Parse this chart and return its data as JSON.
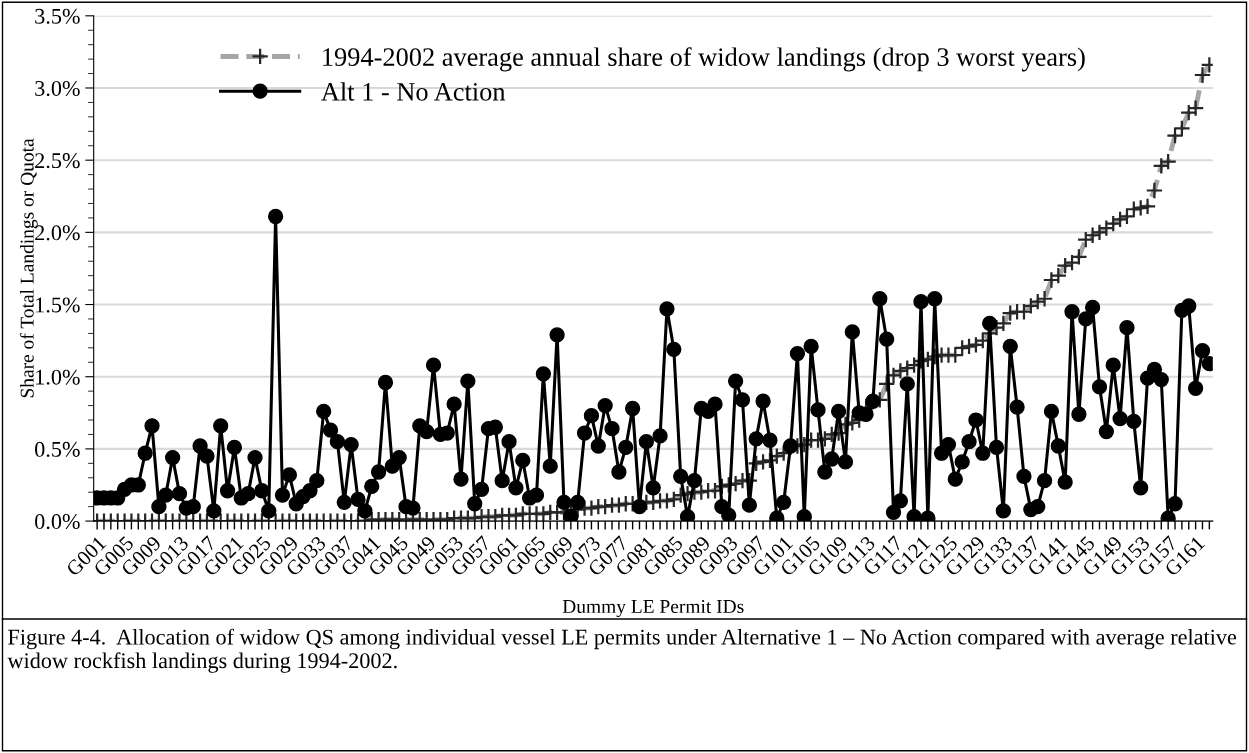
{
  "chart_data": {
    "type": "line",
    "xlabel": "Dummy LE Permit IDs",
    "ylabel": "Share of Total Landings or Quota",
    "annotations": [
      "Figure 4-4.  Allocation of widow QS among individual vessel LE permits under Alternative 1 – No Action compared with average relative widow rockfish landings during 1994-2002."
    ],
    "categories": [
      "G001",
      null,
      null,
      null,
      "G005",
      null,
      null,
      null,
      "G009",
      null,
      null,
      null,
      "G013",
      null,
      null,
      null,
      "G017",
      null,
      null,
      null,
      "G021",
      null,
      null,
      null,
      "G025",
      null,
      null,
      null,
      "G029",
      null,
      null,
      null,
      "G033",
      null,
      null,
      null,
      "G037",
      null,
      null,
      null,
      "G041",
      null,
      null,
      null,
      "G045",
      null,
      null,
      null,
      "G049",
      null,
      null,
      null,
      "G053",
      null,
      null,
      null,
      "G057",
      null,
      null,
      null,
      "G061",
      null,
      null,
      null,
      "G065",
      null,
      null,
      null,
      "G069",
      null,
      null,
      null,
      "G073",
      null,
      null,
      null,
      "G077",
      null,
      null,
      null,
      "G081",
      null,
      null,
      null,
      "G085",
      null,
      null,
      null,
      "G089",
      null,
      null,
      null,
      "G093",
      null,
      null,
      null,
      "G097",
      null,
      null,
      null,
      "G101",
      null,
      null,
      null,
      "G105",
      null,
      null,
      null,
      "G109",
      null,
      null,
      null,
      "G113",
      null,
      null,
      null,
      "G117",
      null,
      null,
      null,
      "G121",
      null,
      null,
      null,
      "G125",
      null,
      null,
      null,
      "G129",
      null,
      null,
      null,
      "G133",
      null,
      null,
      null,
      "G137",
      null,
      null,
      null,
      "G141",
      null,
      null,
      null,
      "G145",
      null,
      null,
      null,
      "G149",
      null,
      null,
      null,
      "G153",
      null,
      null,
      null,
      "G157",
      null,
      null,
      null,
      "G161",
      null,
      null
    ],
    "series": [
      {
        "name": "1994-2002 average annual share of widow landings (drop 3 worst years)",
        "color": "#a6a6a6",
        "line_style": "dashed",
        "marker": "cross",
        "values": [
          0,
          0,
          0,
          0,
          0,
          0,
          0,
          0,
          0,
          0,
          0,
          0,
          0,
          0,
          0,
          0,
          0,
          0,
          0,
          0,
          0,
          0,
          0,
          0,
          0,
          0,
          0,
          0,
          0,
          0,
          0,
          0,
          0,
          0,
          0,
          0,
          0,
          0,
          0,
          0,
          0.01,
          0.01,
          0.01,
          0.01,
          0.01,
          0.01,
          0.01,
          0.01,
          0.01,
          0.01,
          0.01,
          0.01,
          0.02,
          0.02,
          0.02,
          0.02,
          0.03,
          0.03,
          0.03,
          0.04,
          0.04,
          0.04,
          0.05,
          0.05,
          0.05,
          0.05,
          0.06,
          0.06,
          0.06,
          0.07,
          0.08,
          0.09,
          0.09,
          0.1,
          0.1,
          0.11,
          0.11,
          0.12,
          0.12,
          0.13,
          0.13,
          0.13,
          0.14,
          0.14,
          0.15,
          0.18,
          0.19,
          0.2,
          0.2,
          0.21,
          0.21,
          0.24,
          0.25,
          0.26,
          0.28,
          0.28,
          0.4,
          0.41,
          0.42,
          0.45,
          0.47,
          0.51,
          0.52,
          0.53,
          0.56,
          0.56,
          0.57,
          0.6,
          0.61,
          0.67,
          0.68,
          0.7,
          0.78,
          0.84,
          0.84,
          0.95,
          1.01,
          1.04,
          1.06,
          1.08,
          1.11,
          1.12,
          1.14,
          1.15,
          1.15,
          1.15,
          1.2,
          1.21,
          1.22,
          1.25,
          1.3,
          1.34,
          1.37,
          1.44,
          1.45,
          1.45,
          1.49,
          1.52,
          1.54,
          1.67,
          1.7,
          1.77,
          1.79,
          1.83,
          1.95,
          1.98,
          2.0,
          2.03,
          2.06,
          2.09,
          2.11,
          2.16,
          2.17,
          2.18,
          2.29,
          2.46,
          2.49,
          2.67,
          2.72,
          2.83,
          2.86,
          3.09,
          3.16
        ]
      },
      {
        "name": "Alt 1 - No Action",
        "color": "#000000",
        "line_style": "solid",
        "marker": "circle",
        "values": [
          0.16,
          0.16,
          0.16,
          0.16,
          0.22,
          0.25,
          0.25,
          0.47,
          0.66,
          0.1,
          0.18,
          0.44,
          0.19,
          0.09,
          0.1,
          0.52,
          0.45,
          0.07,
          0.66,
          0.21,
          0.51,
          0.16,
          0.19,
          0.44,
          0.21,
          0.07,
          2.11,
          0.18,
          0.32,
          0.12,
          0.17,
          0.21,
          0.28,
          0.76,
          0.63,
          0.55,
          0.13,
          0.53,
          0.15,
          0.07,
          0.24,
          0.34,
          0.96,
          0.38,
          0.44,
          0.1,
          0.09,
          0.66,
          0.62,
          1.08,
          0.6,
          0.61,
          0.81,
          0.29,
          0.97,
          0.12,
          0.22,
          0.64,
          0.65,
          0.28,
          0.55,
          0.23,
          0.42,
          0.16,
          0.18,
          1.02,
          0.38,
          1.29,
          0.13,
          0.03,
          0.13,
          0.61,
          0.73,
          0.52,
          0.8,
          0.64,
          0.34,
          0.51,
          0.78,
          0.1,
          0.55,
          0.23,
          0.59,
          1.47,
          1.19,
          0.31,
          0.03,
          0.28,
          0.78,
          0.76,
          0.81,
          0.1,
          0.04,
          0.97,
          0.84,
          0.11,
          0.57,
          0.83,
          0.56,
          0.02,
          0.13,
          0.52,
          1.16,
          0.03,
          1.21,
          0.77,
          0.34,
          0.43,
          0.76,
          0.41,
          1.31,
          0.75,
          0.74,
          0.83,
          1.54,
          1.26,
          0.06,
          0.14,
          0.95,
          0.03,
          1.52,
          0.02,
          1.54,
          0.47,
          0.53,
          0.29,
          0.41,
          0.55,
          0.7,
          0.47,
          1.37,
          0.51,
          0.07,
          1.21,
          0.79,
          0.31,
          0.08,
          0.1,
          0.28,
          0.76,
          0.52,
          0.27,
          1.45,
          0.74,
          1.4,
          1.48,
          0.93,
          0.62,
          1.08,
          0.71,
          1.34,
          0.69,
          0.23,
          0.99,
          1.05,
          0.98,
          0.02,
          0.12,
          1.46,
          1.49,
          0.92,
          1.18,
          1.09
        ]
      }
    ],
    "ylim": [
      0,
      3.5
    ],
    "yticks": [
      {
        "value": 0,
        "label": "0.0%"
      },
      {
        "value": 0.5,
        "label": "0.5%"
      },
      {
        "value": 1.0,
        "label": "1.0%"
      },
      {
        "value": 1.5,
        "label": "1.5%"
      },
      {
        "value": 2.0,
        "label": "2.0%"
      },
      {
        "value": 2.5,
        "label": "2.5%"
      },
      {
        "value": 3.0,
        "label": "3.0%"
      },
      {
        "value": 3.5,
        "label": "3.5%"
      }
    ],
    "grid": "y",
    "legend": "top"
  }
}
